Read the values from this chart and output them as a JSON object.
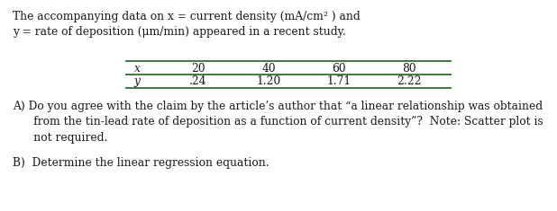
{
  "intro_text": "The accompanying data on x = current density (mA/cm² ) and\ny = rate of deposition (μm/min) appeared in a recent study.",
  "table_x_label": "x",
  "table_y_label": "y",
  "table_x_values": [
    "20",
    "40",
    "60",
    "80"
  ],
  "table_y_values": [
    ".24",
    "1.20",
    "1.71",
    "2.22"
  ],
  "question_A_prefix": "A)",
  "question_A_line1": " Do you agree with the claim by the article’s author that “a linear relationship was obtained",
  "question_A_line2": "      from the tin-lead rate of deposition as a function of current density”?  Note: Scatter plot is",
  "question_A_line3": "      not required.",
  "question_B_prefix": "B)",
  "question_B_text": "  Determine the linear regression equation.",
  "bg_color": "#ffffff",
  "text_color": "#1a1a1a",
  "table_line_color": "#3d7a42",
  "font_size": 8.8,
  "font_family": "serif"
}
